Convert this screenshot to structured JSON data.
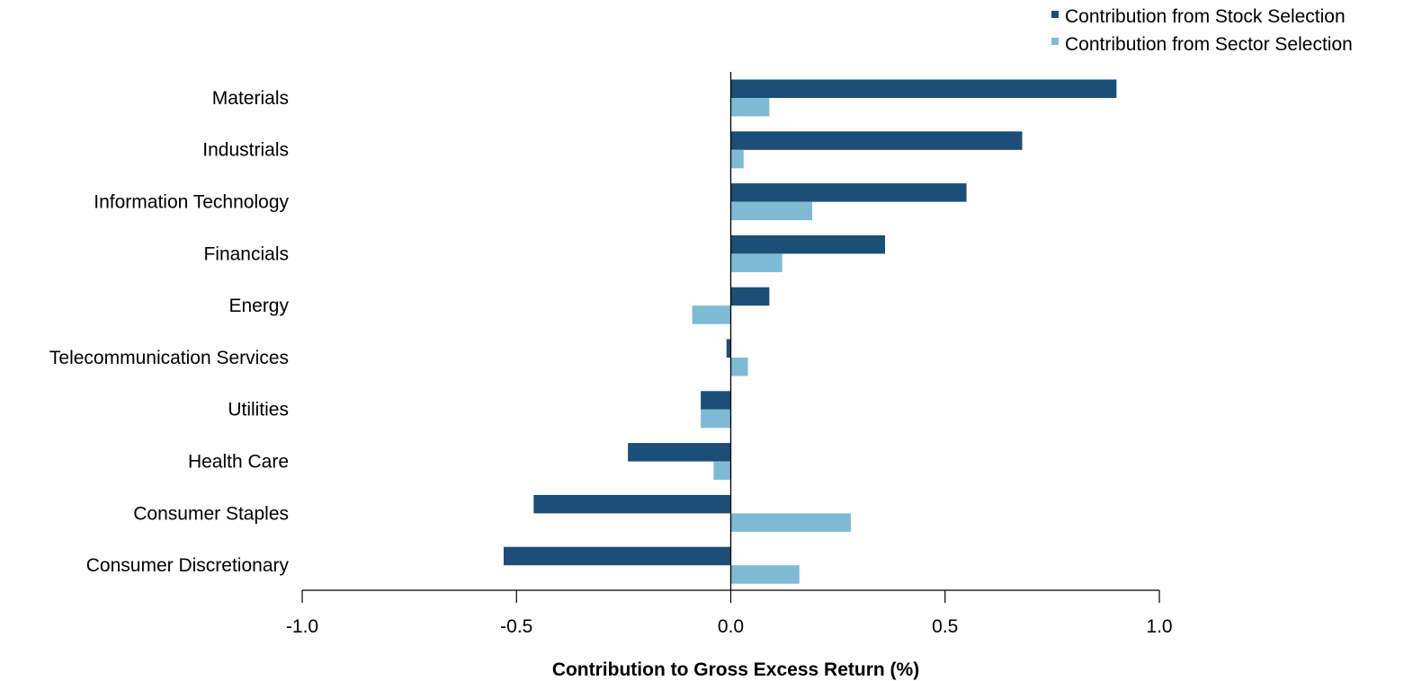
{
  "chart_data": {
    "type": "bar",
    "orientation": "horizontal",
    "title": "",
    "xlabel": "Contribution to Gross Excess Return (%)",
    "ylabel": "",
    "xlim": [
      -1.0,
      1.0
    ],
    "x_ticks": [
      "-1.0",
      "-0.5",
      "0.0",
      "0.5",
      "1.0"
    ],
    "x_tick_values": [
      -1.0,
      -0.5,
      0.0,
      0.5,
      1.0
    ],
    "grid": false,
    "legend_position": "top-right",
    "categories": [
      "Materials",
      "Industrials",
      "Information Technology",
      "Financials",
      "Energy",
      "Telecommunication Services",
      "Utilities",
      "Health Care",
      "Consumer Staples",
      "Consumer Discretionary"
    ],
    "series": [
      {
        "name": "Contribution from Stock Selection",
        "color": "#1c4e78",
        "values": [
          0.9,
          0.68,
          0.55,
          0.36,
          0.09,
          -0.01,
          -0.07,
          -0.24,
          -0.46,
          -0.53
        ]
      },
      {
        "name": "Contribution from Sector Selection",
        "color": "#7fbad5",
        "values": [
          0.09,
          0.03,
          0.19,
          0.12,
          -0.09,
          0.04,
          -0.07,
          -0.04,
          0.28,
          0.16
        ]
      }
    ]
  }
}
